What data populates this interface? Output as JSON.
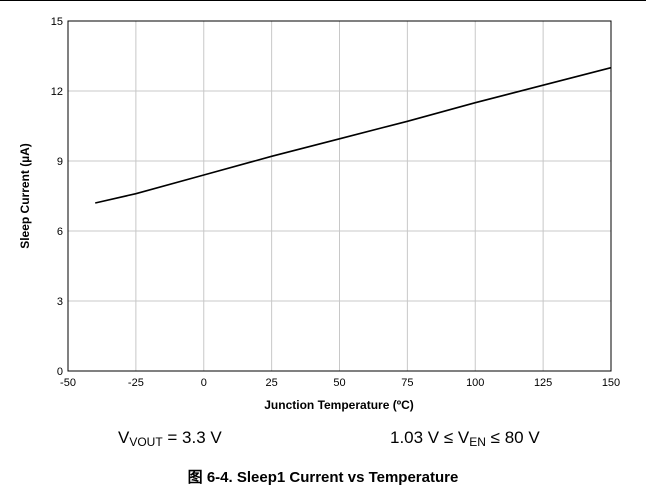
{
  "chart_data": {
    "type": "line",
    "xlabel": "Junction Temperature (ºC)",
    "ylabel": "Sleep Current (µA)",
    "xlim": [
      -50,
      150
    ],
    "ylim": [
      0,
      15
    ],
    "xticks": [
      -50,
      -25,
      0,
      25,
      50,
      75,
      100,
      125,
      150
    ],
    "yticks": [
      0,
      3,
      6,
      9,
      12,
      15
    ],
    "grid": true,
    "series": [
      {
        "x": [
          -40,
          -25,
          0,
          25,
          50,
          75,
          100,
          125,
          150
        ],
        "y": [
          7.2,
          7.6,
          8.4,
          9.2,
          9.95,
          10.7,
          11.5,
          12.25,
          13.0
        ]
      }
    ]
  },
  "conditions": {
    "left": {
      "prefix": "V",
      "sub": "VOUT",
      "suffix": " = 3.3 V"
    },
    "right": {
      "prefix": "1.03 V ≤ V",
      "sub": "EN",
      "suffix": " ≤ 80 V"
    }
  },
  "caption": "图 6-4. Sleep1 Current vs Temperature"
}
